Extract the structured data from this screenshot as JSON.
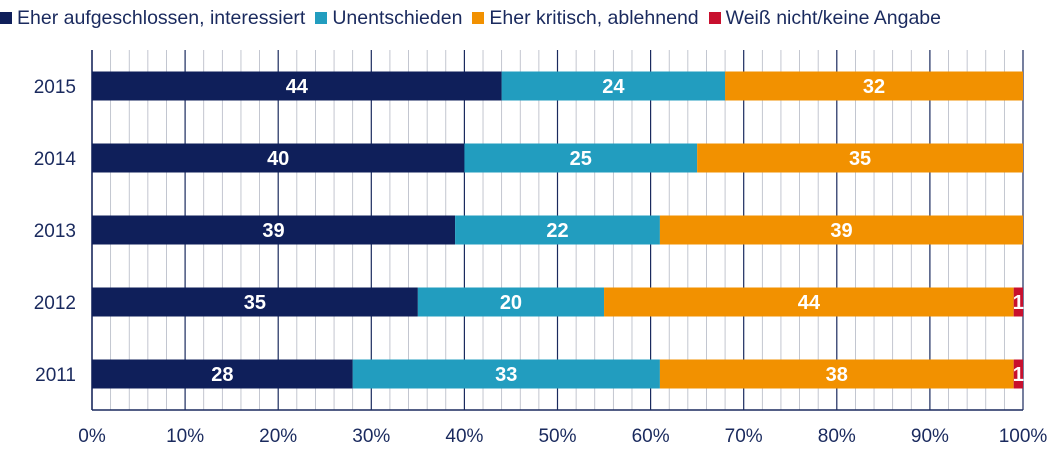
{
  "chart_data": {
    "type": "bar",
    "orientation": "horizontal",
    "stacked": true,
    "categories": [
      "2015",
      "2014",
      "2013",
      "2012",
      "2011"
    ],
    "series": [
      {
        "name": "Eher aufgeschlossen, interessiert",
        "color": "#0f1f5a",
        "values": [
          44,
          40,
          39,
          35,
          28
        ]
      },
      {
        "name": "Unentschieden",
        "color": "#229dbf",
        "values": [
          24,
          25,
          22,
          20,
          33
        ]
      },
      {
        "name": "Eher kritisch, ablehnend",
        "color": "#f29100",
        "values": [
          32,
          35,
          39,
          44,
          38
        ]
      },
      {
        "name": "Weiß nicht/keine Angabe",
        "color": "#c8102e",
        "values": [
          0,
          0,
          0,
          1,
          1
        ]
      }
    ],
    "xlim": [
      0,
      100
    ],
    "x_ticks": [
      "0%",
      "10%",
      "20%",
      "30%",
      "40%",
      "50%",
      "60%",
      "70%",
      "80%",
      "90%",
      "100%"
    ],
    "legend_position": "top",
    "grid": true,
    "title": "",
    "xlabel": "",
    "ylabel": ""
  }
}
